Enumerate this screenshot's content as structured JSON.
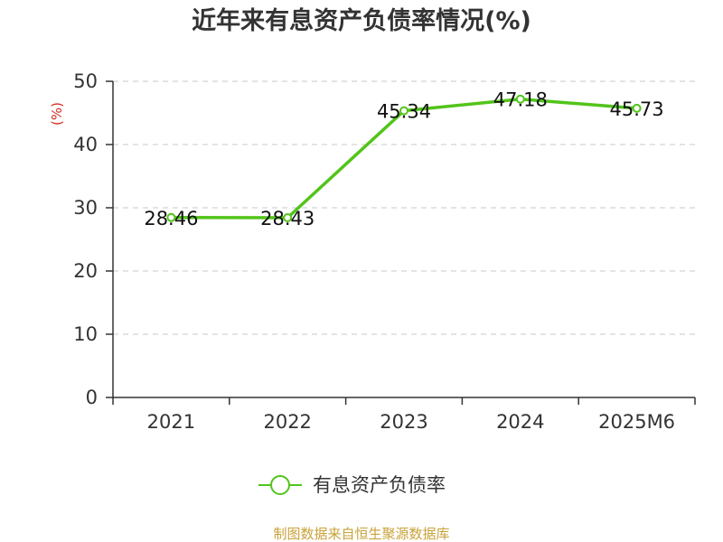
{
  "chart_data": {
    "type": "line",
    "title": "近年来有息资产负债率情况(%)",
    "ylabel": "(%)",
    "categories": [
      "2021",
      "2022",
      "2023",
      "2024",
      "2025M6"
    ],
    "ylim": [
      0,
      50
    ],
    "yticks": [
      "0",
      "10",
      "20",
      "30",
      "40",
      "50"
    ],
    "grid": true,
    "legend_position": "bottom-center",
    "series": [
      {
        "name": "有息资产负债率",
        "values": [
          28.46,
          28.43,
          45.34,
          47.18,
          45.73
        ],
        "labels": [
          "28.46",
          "28.43",
          "45.34",
          "47.18",
          "45.73"
        ],
        "color": "#52c41a"
      }
    ]
  },
  "footer": {
    "source": "制图数据来自恒生聚源数据库"
  }
}
